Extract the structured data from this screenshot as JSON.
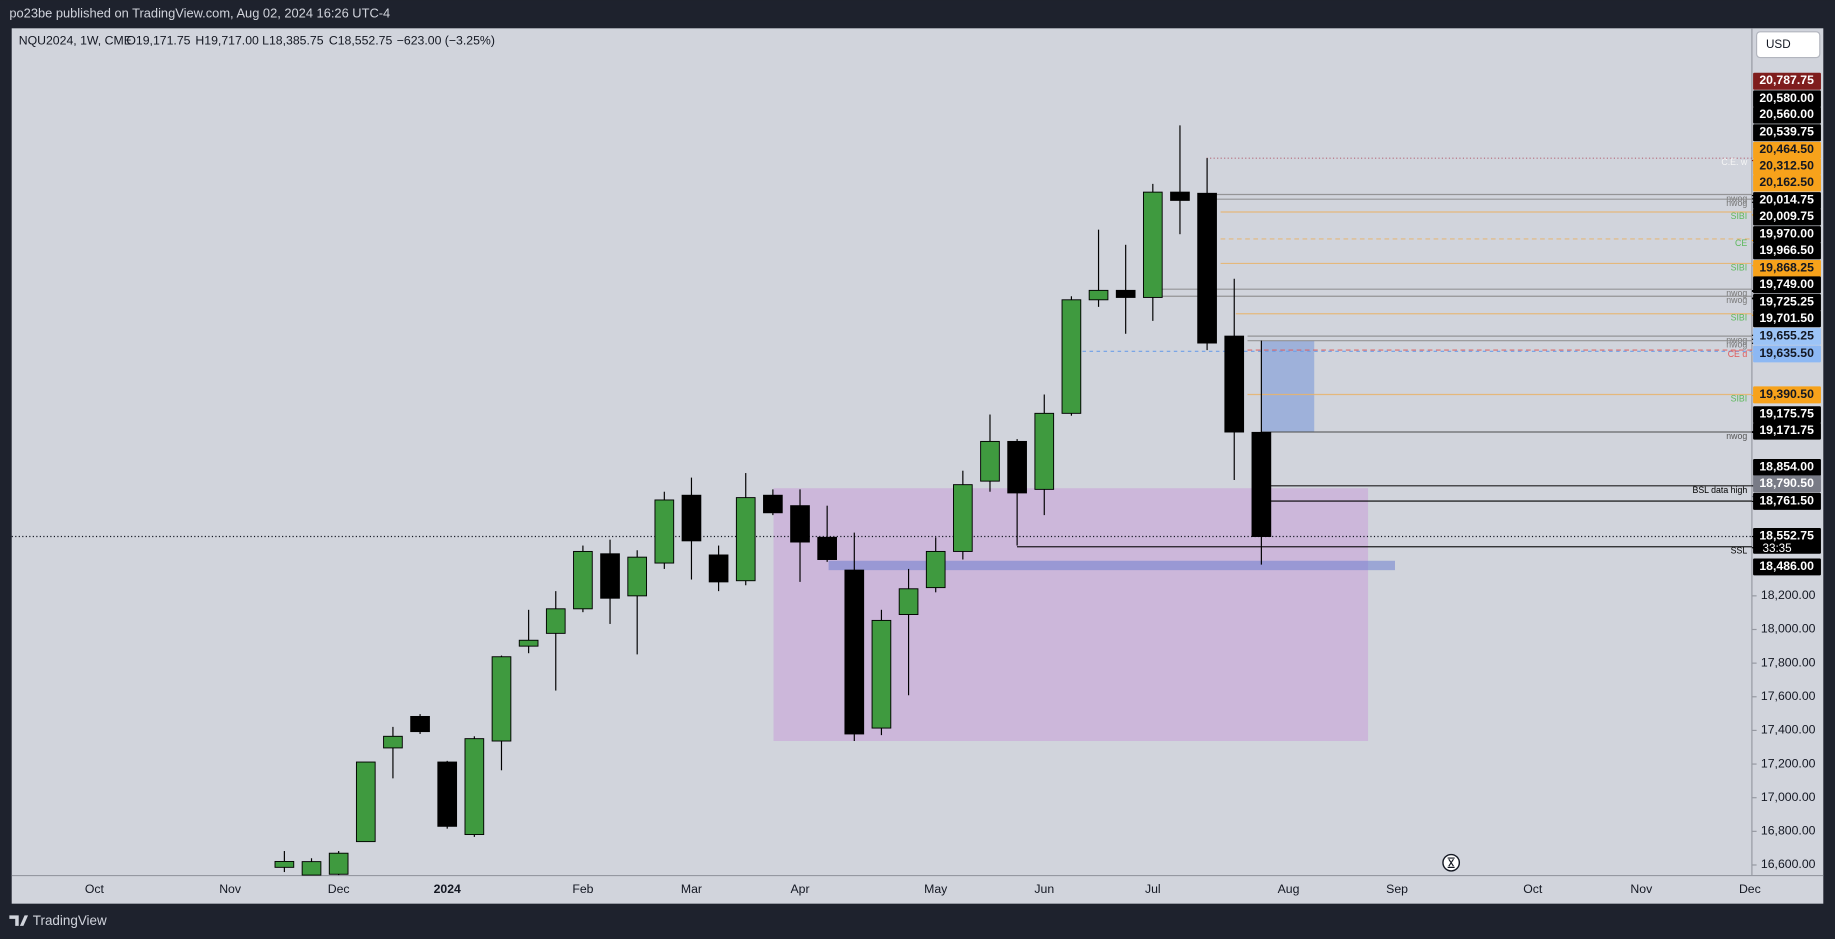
{
  "header": {
    "published": "po23be published on TradingView.com, Aug 02, 2024 16:26 UTC-4"
  },
  "legend": {
    "symbol": "NQU2024, 1W, CME",
    "open": "O19,171.75",
    "high": "H19,717.00",
    "low": "L18,385.75",
    "close": "C18,552.75",
    "change": "−623.00 (−3.25%)"
  },
  "currency": "USD",
  "footer": {
    "brand": "TradingView"
  },
  "chart_data": {
    "type": "candlestick",
    "up_color": "#3f9a3f",
    "down_color": "#000000",
    "categories": [
      null,
      null,
      null,
      "Oct",
      null,
      null,
      null,
      null,
      "Nov",
      null,
      null,
      null,
      "Dec",
      null,
      null,
      null,
      "2024",
      null,
      null,
      null,
      null,
      "Feb",
      null,
      null,
      null,
      "Mar",
      null,
      null,
      null,
      "Apr",
      null,
      null,
      null,
      null,
      "May",
      null,
      null,
      null,
      "Jun",
      null,
      null,
      null,
      "Jul",
      null,
      null,
      null,
      null,
      "Aug",
      null,
      null,
      null,
      "Sep",
      null,
      null,
      null,
      null,
      "Oct",
      null,
      null,
      null,
      "Nov",
      null,
      null,
      null,
      "Dec"
    ],
    "open": [
      null,
      null,
      null,
      null,
      null,
      null,
      null,
      null,
      null,
      null,
      16586,
      16540,
      16545,
      16739,
      17296,
      17483,
      17212,
      16781,
      17337,
      17901,
      17977,
      18123,
      18450,
      18200,
      18395,
      18798,
      18443,
      18290,
      18798,
      18736,
      18548,
      18353,
      17414,
      18089,
      18249,
      18464,
      18882,
      19118,
      18833,
      19285,
      19960,
      20016,
      19974,
      20600,
      20593,
      19744,
      19171.75,
      null,
      null,
      null,
      null,
      null,
      null,
      null,
      null,
      null,
      null,
      null,
      null,
      null,
      null,
      null,
      null,
      null,
      null
    ],
    "high": [
      null,
      null,
      null,
      null,
      null,
      null,
      null,
      null,
      null,
      null,
      16683,
      16640,
      16683,
      17212,
      17421,
      17497,
      17219,
      17365,
      17845,
      18117,
      18228,
      18499,
      18534,
      18471,
      18819,
      18903,
      18499,
      18930,
      18833,
      18833,
      18736,
      18576,
      18117,
      18360,
      18548,
      18944,
      19278,
      19132,
      19397,
      19981,
      20377,
      20287,
      20649,
      20997,
      20802,
      20085,
      19717,
      null,
      null,
      null,
      null,
      null,
      null,
      null,
      null,
      null,
      null,
      null,
      null,
      null,
      null,
      null,
      null,
      null,
      null
    ],
    "low": [
      null,
      null,
      null,
      null,
      null,
      null,
      null,
      null,
      null,
      null,
      16558,
      16540,
      16540,
      16739,
      17115,
      17379,
      16816,
      16767,
      17163,
      17859,
      17637,
      18103,
      18033,
      17852,
      18360,
      18297,
      18228,
      18263,
      18680,
      18283,
      18402,
      17337,
      17372,
      17609,
      18221,
      18416,
      18819,
      18499,
      18680,
      19271,
      19918,
      19758,
      19835,
      20350,
      19661,
      18889,
      18385.75,
      null,
      null,
      null,
      null,
      null,
      null,
      null,
      null,
      null,
      null,
      null,
      null,
      null,
      null,
      null,
      null,
      null,
      null
    ],
    "close": [
      null,
      null,
      null,
      null,
      null,
      null,
      null,
      null,
      null,
      null,
      16621,
      16620,
      16670,
      17212,
      17365,
      17393,
      16830,
      17351,
      17838,
      17936,
      18123,
      18464,
      18186,
      18430,
      18770,
      18527,
      18283,
      18784,
      18694,
      18520,
      18416,
      17379,
      18054,
      18242,
      18464,
      18861,
      19118,
      18812,
      19285,
      19960,
      20016,
      19974,
      20600,
      20551,
      19703,
      19174,
      18552.75,
      null,
      null,
      null,
      null,
      null,
      null,
      null,
      null,
      null,
      null,
      null,
      null,
      null,
      null,
      null,
      null,
      null,
      null
    ],
    "ylim": [
      16537,
      21574
    ],
    "yticks": [
      {
        "value": 16600,
        "label": "16,600.00"
      },
      {
        "value": 16800,
        "label": "16,800.00"
      },
      {
        "value": 17000,
        "label": "17,000.00"
      },
      {
        "value": 17200,
        "label": "17,200.00"
      },
      {
        "value": 17400,
        "label": "17,400.00"
      },
      {
        "value": 17600,
        "label": "17,600.00"
      },
      {
        "value": 17800,
        "label": "17,800.00"
      },
      {
        "value": 18000,
        "label": "18,000.00"
      },
      {
        "value": 18200,
        "label": "18,200.00"
      }
    ],
    "grid": false,
    "price_labels": [
      {
        "value": 20787.75,
        "label": "20,787.75",
        "color": "#7f1d1d"
      },
      {
        "value": 20580,
        "label": "20,580.00",
        "color": "#000000"
      },
      {
        "value": 20560,
        "label": "20,560.00",
        "color": "#000000"
      },
      {
        "value": 20539.75,
        "label": "20,539.75",
        "color": "#000000"
      },
      {
        "value": 20464.5,
        "label": "20,464.50",
        "color": "#f7a21b"
      },
      {
        "value": 20312.5,
        "label": "20,312.50",
        "color": "#f7a21b"
      },
      {
        "value": 20162.5,
        "label": "20,162.50",
        "color": "#f7a21b"
      },
      {
        "value": 20014.75,
        "label": "20,014.75",
        "color": "#000000"
      },
      {
        "value": 20009.75,
        "label": "20,009.75",
        "color": "#000000"
      },
      {
        "value": 19970,
        "label": "19,970.00",
        "color": "#000000"
      },
      {
        "value": 19966.5,
        "label": "19,966.50",
        "color": "#000000"
      },
      {
        "value": 19868.25,
        "label": "19,868.25",
        "color": "#f7a21b"
      },
      {
        "value": 19749,
        "label": "19,749.00",
        "color": "#000000"
      },
      {
        "value": 19725.25,
        "label": "19,725.25",
        "color": "#000000"
      },
      {
        "value": 19701.5,
        "label": "19,701.50",
        "color": "#000000"
      },
      {
        "value": 19655.25,
        "label": "19,655.25",
        "color": "#9cc4f7"
      },
      {
        "value": 19635.5,
        "label": "19,635.50",
        "color": "#8db8f3"
      },
      {
        "value": 19390.5,
        "label": "19,390.50",
        "color": "#f7a21b"
      },
      {
        "value": 19175.75,
        "label": "19,175.75",
        "color": "#000000"
      },
      {
        "value": 19171.75,
        "label": "19,171.75",
        "color": "#000000"
      },
      {
        "value": 18854,
        "label": "18,854.00",
        "color": "#000000"
      },
      {
        "value": 18790.5,
        "label": "18,790.50",
        "color": "#787b86"
      },
      {
        "value": 18761.5,
        "label": "18,761.50",
        "color": "#000000"
      },
      {
        "value": 18552.75,
        "label": "18,552.75",
        "color": "#000000"
      },
      {
        "value": 18486,
        "label": "18,486.00",
        "color": "#000000"
      }
    ],
    "countdown": "33:35",
    "annotations": [
      {
        "text": "C.E. w",
        "price": 20802,
        "line_color": "#b0586a",
        "label_color": "#f5f5f5",
        "style": "dotted"
      },
      {
        "text": "nwog",
        "price": 20586,
        "line_color": "#8a8a8a",
        "label_color": "#777777",
        "style": "solid"
      },
      {
        "text": "nwog",
        "price": 20558,
        "line_color": "#8a8a8a",
        "label_color": "#777777",
        "style": "solid"
      },
      {
        "text": "SIBI",
        "price": 20482,
        "line_color": "#e8b46b",
        "label_color": "#5cb85c",
        "style": "solid"
      },
      {
        "text": "CE",
        "price": 20322,
        "line_color": "#e8b46b",
        "label_color": "#5cb85c",
        "style": "dashed"
      },
      {
        "text": "SIBI",
        "price": 20176,
        "line_color": "#e8b46b",
        "label_color": "#5cb85c",
        "style": "solid"
      },
      {
        "text": "nwog",
        "price": 20023,
        "line_color": "#8a8a8a",
        "label_color": "#777777",
        "style": "solid"
      },
      {
        "text": "nwog",
        "price": 19981,
        "line_color": "#8a8a8a",
        "label_color": "#777777",
        "style": "solid"
      },
      {
        "text": "SIBI",
        "price": 19877,
        "line_color": "#e8b46b",
        "label_color": "#5cb85c",
        "style": "solid"
      },
      {
        "text": "nwog",
        "price": 19744,
        "line_color": "#8a8a8a",
        "label_color": "#777777",
        "style": "solid"
      },
      {
        "text": "nwog",
        "price": 19717,
        "line_color": "#8a8a8a",
        "label_color": "#777777",
        "style": "solid"
      },
      {
        "text": "CE d",
        "price": 19661,
        "line_color": "#e05a5a",
        "label_color": "#e05a5a",
        "style": "dashed"
      },
      {
        "text": "SIBI",
        "price": 19397,
        "line_color": "#e8b46b",
        "label_color": "#5cb85c",
        "style": "solid"
      },
      {
        "text": "nwog",
        "price": 19174,
        "line_color": "#555555",
        "label_color": "#555555",
        "style": "solid"
      },
      {
        "text": "BSL data high",
        "price": 18854,
        "line_color": "#000000",
        "label_color": "#000000",
        "style": "solid"
      },
      {
        "text": "SSL",
        "price": 18492,
        "line_color": "#000000",
        "label_color": "#000000",
        "style": "solid"
      }
    ]
  }
}
